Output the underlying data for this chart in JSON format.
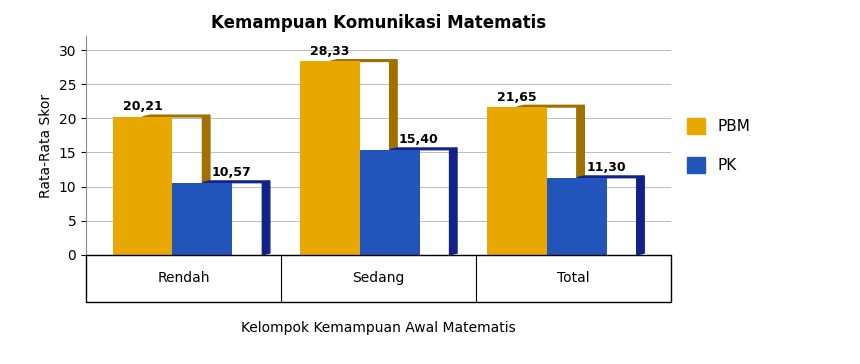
{
  "title": "Kemampuan Komunikasi Matematis",
  "xlabel": "Kelompok Kemampuan Awal Matematis",
  "ylabel": "Rata-Rata Skor",
  "categories": [
    "Rendah",
    "Sedang",
    "Total"
  ],
  "pbm_values": [
    20.21,
    28.33,
    21.65
  ],
  "pk_values": [
    10.57,
    15.4,
    11.3
  ],
  "pbm_color": "#E8A800",
  "pk_color": "#2255BB",
  "ylim": [
    0,
    32
  ],
  "yticks": [
    0,
    5,
    10,
    15,
    20,
    25,
    30
  ],
  "bar_width": 0.32,
  "legend_labels": [
    "PBM",
    "PK"
  ],
  "title_fontsize": 12,
  "axis_label_fontsize": 10,
  "tick_fontsize": 10,
  "value_fontsize": 9,
  "background_color": "#ffffff",
  "grid_color": "#bbbbbb"
}
